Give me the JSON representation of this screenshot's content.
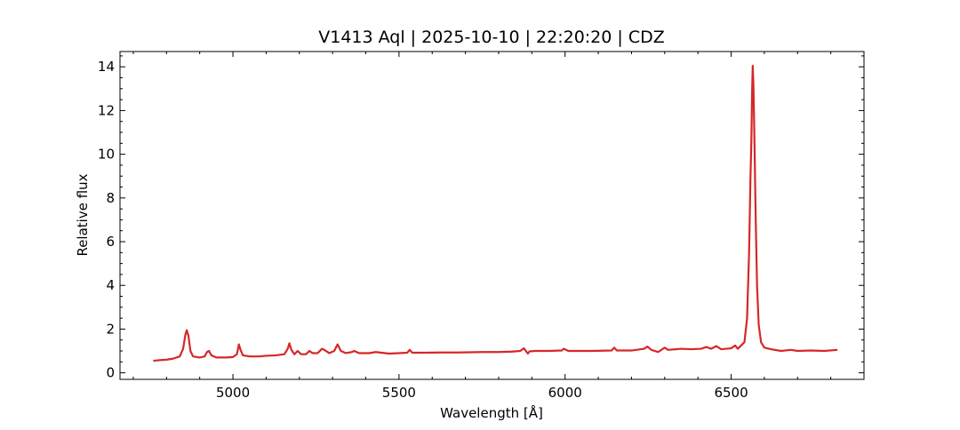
{
  "chart_data": {
    "type": "line",
    "title": "V1413 Aql | 2025-10-10 | 22:20:20 | CDZ",
    "xlabel": "Wavelength [Å]",
    "ylabel": "Relative flux",
    "xlim": [
      4660,
      6900
    ],
    "ylim": [
      -0.3,
      14.7
    ],
    "xticks": [
      5000,
      5500,
      6000,
      6500
    ],
    "xtick_labels": [
      "5000",
      "5500",
      "6000",
      "6500"
    ],
    "yticks": [
      0,
      2,
      4,
      6,
      8,
      10,
      12,
      14
    ],
    "ytick_labels": [
      "0",
      "2",
      "4",
      "6",
      "8",
      "10",
      "12",
      "14"
    ],
    "grid": false,
    "series": [
      {
        "color": "#d62728",
        "points": [
          [
            4760,
            0.55
          ],
          [
            4780,
            0.58
          ],
          [
            4800,
            0.6
          ],
          [
            4820,
            0.65
          ],
          [
            4840,
            0.75
          ],
          [
            4850,
            1.1
          ],
          [
            4857,
            1.75
          ],
          [
            4861,
            1.95
          ],
          [
            4866,
            1.7
          ],
          [
            4872,
            1.0
          ],
          [
            4880,
            0.75
          ],
          [
            4900,
            0.7
          ],
          [
            4915,
            0.75
          ],
          [
            4922,
            0.95
          ],
          [
            4928,
            1.0
          ],
          [
            4935,
            0.8
          ],
          [
            4950,
            0.7
          ],
          [
            4980,
            0.7
          ],
          [
            5000,
            0.72
          ],
          [
            5012,
            0.85
          ],
          [
            5018,
            1.3
          ],
          [
            5023,
            1.05
          ],
          [
            5030,
            0.8
          ],
          [
            5050,
            0.75
          ],
          [
            5080,
            0.75
          ],
          [
            5100,
            0.78
          ],
          [
            5130,
            0.8
          ],
          [
            5155,
            0.85
          ],
          [
            5165,
            1.1
          ],
          [
            5170,
            1.35
          ],
          [
            5176,
            1.05
          ],
          [
            5185,
            0.85
          ],
          [
            5195,
            1.0
          ],
          [
            5205,
            0.85
          ],
          [
            5220,
            0.85
          ],
          [
            5230,
            1.0
          ],
          [
            5240,
            0.9
          ],
          [
            5255,
            0.9
          ],
          [
            5268,
            1.1
          ],
          [
            5275,
            1.05
          ],
          [
            5290,
            0.9
          ],
          [
            5305,
            1.0
          ],
          [
            5315,
            1.3
          ],
          [
            5325,
            1.0
          ],
          [
            5340,
            0.9
          ],
          [
            5358,
            0.95
          ],
          [
            5365,
            1.0
          ],
          [
            5380,
            0.9
          ],
          [
            5410,
            0.9
          ],
          [
            5430,
            0.95
          ],
          [
            5470,
            0.88
          ],
          [
            5500,
            0.9
          ],
          [
            5525,
            0.92
          ],
          [
            5532,
            1.05
          ],
          [
            5540,
            0.92
          ],
          [
            5580,
            0.92
          ],
          [
            5620,
            0.93
          ],
          [
            5680,
            0.93
          ],
          [
            5750,
            0.95
          ],
          [
            5800,
            0.95
          ],
          [
            5840,
            0.97
          ],
          [
            5865,
            1.0
          ],
          [
            5876,
            1.12
          ],
          [
            5882,
            1.0
          ],
          [
            5888,
            0.88
          ],
          [
            5893,
            0.98
          ],
          [
            5910,
            1.0
          ],
          [
            5950,
            1.0
          ],
          [
            5990,
            1.02
          ],
          [
            5996,
            1.1
          ],
          [
            6010,
            1.0
          ],
          [
            6080,
            1.0
          ],
          [
            6140,
            1.02
          ],
          [
            6148,
            1.15
          ],
          [
            6156,
            1.02
          ],
          [
            6200,
            1.02
          ],
          [
            6238,
            1.1
          ],
          [
            6248,
            1.2
          ],
          [
            6260,
            1.05
          ],
          [
            6280,
            0.95
          ],
          [
            6300,
            1.15
          ],
          [
            6310,
            1.05
          ],
          [
            6350,
            1.1
          ],
          [
            6380,
            1.08
          ],
          [
            6410,
            1.1
          ],
          [
            6425,
            1.18
          ],
          [
            6440,
            1.1
          ],
          [
            6455,
            1.22
          ],
          [
            6470,
            1.08
          ],
          [
            6500,
            1.12
          ],
          [
            6512,
            1.25
          ],
          [
            6520,
            1.1
          ],
          [
            6540,
            1.4
          ],
          [
            6548,
            2.5
          ],
          [
            6554,
            5.5
          ],
          [
            6558,
            8.8
          ],
          [
            6561,
            10.7
          ],
          [
            6563,
            12.8
          ],
          [
            6565,
            14.05
          ],
          [
            6567,
            13.2
          ],
          [
            6570,
            10.8
          ],
          [
            6574,
            7.0
          ],
          [
            6578,
            4.0
          ],
          [
            6583,
            2.2
          ],
          [
            6590,
            1.4
          ],
          [
            6600,
            1.15
          ],
          [
            6620,
            1.08
          ],
          [
            6650,
            1.0
          ],
          [
            6680,
            1.05
          ],
          [
            6700,
            1.0
          ],
          [
            6740,
            1.02
          ],
          [
            6780,
            1.0
          ],
          [
            6820,
            1.05
          ]
        ]
      }
    ]
  }
}
